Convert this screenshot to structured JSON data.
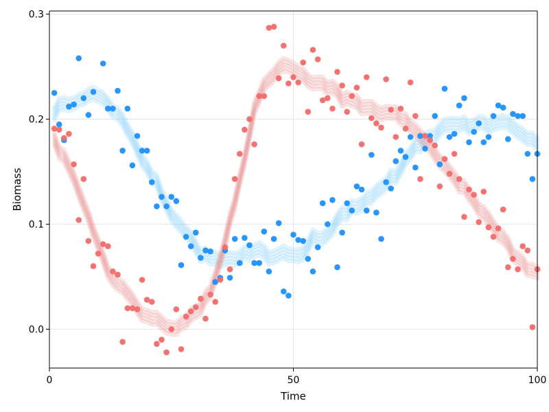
{
  "chart_data": {
    "type": "scatter",
    "xlabel": "Time",
    "ylabel": "Biomass",
    "xlim": [
      0,
      100
    ],
    "ylim": [
      -0.037,
      0.303
    ],
    "xticks": [
      0,
      50,
      100
    ],
    "xtick_labels": [
      "0",
      "50",
      "100"
    ],
    "yticks": [
      0.0,
      0.1,
      0.2,
      0.3
    ],
    "ytick_labels": [
      "0.0",
      "0.1",
      "0.2",
      "0.3"
    ],
    "grid": true,
    "legend": "none",
    "series": [
      {
        "color": "#1e90ff",
        "band_color": "#87cefa",
        "points": [
          [
            1,
            0.225
          ],
          [
            2,
            0.195
          ],
          [
            3,
            0.18
          ],
          [
            4,
            0.212
          ],
          [
            5,
            0.214
          ],
          [
            6,
            0.258
          ],
          [
            7,
            0.22
          ],
          [
            8,
            0.204
          ],
          [
            9,
            0.226
          ],
          [
            11,
            0.253
          ],
          [
            12,
            0.21
          ],
          [
            13,
            0.21
          ],
          [
            14,
            0.227
          ],
          [
            15,
            0.17
          ],
          [
            16,
            0.21
          ],
          [
            17,
            0.156
          ],
          [
            18,
            0.184
          ],
          [
            19,
            0.17
          ],
          [
            20,
            0.17
          ],
          [
            21,
            0.14
          ],
          [
            22,
            0.117
          ],
          [
            23,
            0.126
          ],
          [
            24,
            0.117
          ],
          [
            25,
            0.126
          ],
          [
            26,
            0.122
          ],
          [
            27,
            0.061
          ],
          [
            28,
            0.088
          ],
          [
            29,
            0.079
          ],
          [
            30,
            0.092
          ],
          [
            31,
            0.068
          ],
          [
            32,
            0.075
          ],
          [
            33,
            0.074
          ],
          [
            34,
            0.045
          ],
          [
            35,
            0.049
          ],
          [
            36,
            0.075
          ],
          [
            37,
            0.049
          ],
          [
            38,
            0.086
          ],
          [
            39,
            0.063
          ],
          [
            40,
            0.087
          ],
          [
            41,
            0.08
          ],
          [
            42,
            0.063
          ],
          [
            43,
            0.063
          ],
          [
            44,
            0.093
          ],
          [
            45,
            0.055
          ],
          [
            46,
            0.086
          ],
          [
            47,
            0.101
          ],
          [
            48,
            0.036
          ],
          [
            49,
            0.032
          ],
          [
            50,
            0.09
          ],
          [
            51,
            0.085
          ],
          [
            52,
            0.084
          ],
          [
            53,
            0.067
          ],
          [
            54,
            0.055
          ],
          [
            55,
            0.078
          ],
          [
            56,
            0.12
          ],
          [
            57,
            0.1
          ],
          [
            58,
            0.123
          ],
          [
            59,
            0.059
          ],
          [
            60,
            0.092
          ],
          [
            61,
            0.12
          ],
          [
            62,
            0.113
          ],
          [
            63,
            0.136
          ],
          [
            64,
            0.133
          ],
          [
            65,
            0.113
          ],
          [
            66,
            0.166
          ],
          [
            67,
            0.111
          ],
          [
            68,
            0.086
          ],
          [
            69,
            0.14
          ],
          [
            70,
            0.134
          ],
          [
            71,
            0.16
          ],
          [
            72,
            0.17
          ],
          [
            73,
            0.164
          ],
          [
            74,
            0.183
          ],
          [
            75,
            0.154
          ],
          [
            76,
            0.184
          ],
          [
            77,
            0.172
          ],
          [
            78,
            0.184
          ],
          [
            79,
            0.203
          ],
          [
            80,
            0.157
          ],
          [
            81,
            0.229
          ],
          [
            82,
            0.183
          ],
          [
            83,
            0.186
          ],
          [
            84,
            0.213
          ],
          [
            85,
            0.22
          ],
          [
            86,
            0.178
          ],
          [
            87,
            0.188
          ],
          [
            88,
            0.196
          ],
          [
            89,
            0.178
          ],
          [
            90,
            0.183
          ],
          [
            91,
            0.203
          ],
          [
            92,
            0.213
          ],
          [
            93,
            0.211
          ],
          [
            94,
            0.181
          ],
          [
            95,
            0.205
          ],
          [
            96,
            0.203
          ],
          [
            97,
            0.203
          ],
          [
            98,
            0.167
          ],
          [
            99,
            0.143
          ],
          [
            100,
            0.167
          ]
        ]
      },
      {
        "color": "#f26b6b",
        "band_color": "#e88f8f",
        "points": [
          [
            1,
            0.191
          ],
          [
            2,
            0.19
          ],
          [
            3,
            0.182
          ],
          [
            4,
            0.186
          ],
          [
            5,
            0.157
          ],
          [
            6,
            0.104
          ],
          [
            7,
            0.143
          ],
          [
            8,
            0.084
          ],
          [
            9,
            0.06
          ],
          [
            10,
            0.072
          ],
          [
            11,
            0.081
          ],
          [
            12,
            0.079
          ],
          [
            13,
            0.055
          ],
          [
            14,
            0.052
          ],
          [
            15,
            -0.012
          ],
          [
            16,
            0.02
          ],
          [
            17,
            0.02
          ],
          [
            18,
            0.019
          ],
          [
            19,
            0.047
          ],
          [
            20,
            0.028
          ],
          [
            21,
            0.026
          ],
          [
            22,
            -0.014
          ],
          [
            23,
            -0.01
          ],
          [
            24,
            -0.022
          ],
          [
            25,
            0.0
          ],
          [
            26,
            0.019
          ],
          [
            27,
            -0.019
          ],
          [
            28,
            0.012
          ],
          [
            29,
            0.017
          ],
          [
            30,
            0.021
          ],
          [
            31,
            0.029
          ],
          [
            32,
            0.01
          ],
          [
            33,
            0.033
          ],
          [
            34,
            0.026
          ],
          [
            35,
            0.047
          ],
          [
            36,
            0.078
          ],
          [
            37,
            0.057
          ],
          [
            38,
            0.143
          ],
          [
            39,
            0.167
          ],
          [
            40,
            0.19
          ],
          [
            41,
            0.2
          ],
          [
            42,
            0.176
          ],
          [
            43,
            0.222
          ],
          [
            44,
            0.222
          ],
          [
            45,
            0.287
          ],
          [
            46,
            0.288
          ],
          [
            47,
            0.239
          ],
          [
            48,
            0.27
          ],
          [
            49,
            0.234
          ],
          [
            50,
            0.24
          ],
          [
            51,
            0.235
          ],
          [
            52,
            0.254
          ],
          [
            53,
            0.207
          ],
          [
            54,
            0.266
          ],
          [
            55,
            0.257
          ],
          [
            56,
            0.218
          ],
          [
            57,
            0.22
          ],
          [
            58,
            0.21
          ],
          [
            59,
            0.245
          ],
          [
            60,
            0.232
          ],
          [
            61,
            0.207
          ],
          [
            62,
            0.222
          ],
          [
            63,
            0.23
          ],
          [
            64,
            0.176
          ],
          [
            65,
            0.24
          ],
          [
            66,
            0.201
          ],
          [
            67,
            0.196
          ],
          [
            68,
            0.192
          ],
          [
            69,
            0.238
          ],
          [
            70,
            0.209
          ],
          [
            71,
            0.183
          ],
          [
            72,
            0.21
          ],
          [
            73,
            0.191
          ],
          [
            74,
            0.235
          ],
          [
            75,
            0.203
          ],
          [
            76,
            0.143
          ],
          [
            77,
            0.184
          ],
          [
            78,
            0.18
          ],
          [
            79,
            0.175
          ],
          [
            80,
            0.136
          ],
          [
            81,
            0.162
          ],
          [
            82,
            0.148
          ],
          [
            83,
            0.167
          ],
          [
            84,
            0.143
          ],
          [
            85,
            0.107
          ],
          [
            86,
            0.133
          ],
          [
            87,
            0.128
          ],
          [
            88,
            0.102
          ],
          [
            89,
            0.131
          ],
          [
            90,
            0.097
          ],
          [
            91,
            0.088
          ],
          [
            92,
            0.096
          ],
          [
            93,
            0.114
          ],
          [
            94,
            0.059
          ],
          [
            95,
            0.067
          ],
          [
            96,
            0.057
          ],
          [
            97,
            0.079
          ],
          [
            98,
            0.075
          ],
          [
            99,
            0.002
          ],
          [
            100,
            0.057
          ]
        ]
      }
    ]
  }
}
